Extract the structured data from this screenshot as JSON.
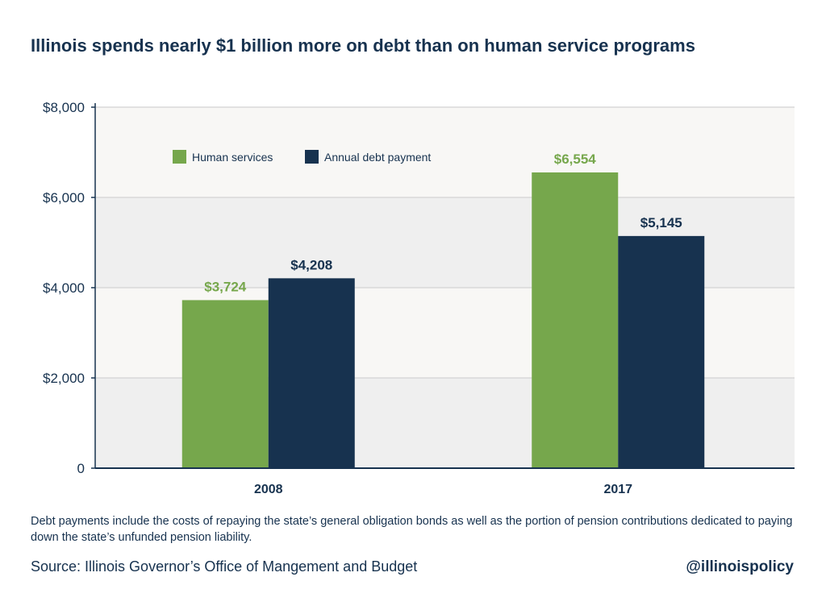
{
  "title": "Illinois spends nearly $1 billion more on debt than on human service programs",
  "footnote": "Debt payments include the costs of repaying the state’s general obligation bonds as well as the portion of pension contributions dedicated to paying down the state’s unfunded pension liability.",
  "source": "Source: Illinois Governor’s Office of Mangement and Budget",
  "handle": "@illinoispolicy",
  "colors": {
    "human_services": "#76a74c",
    "debt": "#17324f",
    "band_light": "#f8f7f5",
    "band_dark": "#efefef",
    "axis": "#17324f"
  },
  "chart_data": {
    "type": "bar",
    "categories": [
      "2008",
      "2017"
    ],
    "series": [
      {
        "name": "Human services",
        "values": [
          3724,
          6554
        ],
        "labels": [
          "$3,724",
          "$6,554"
        ]
      },
      {
        "name": "Annual debt payment",
        "values": [
          4208,
          5145
        ],
        "labels": [
          "$4,208",
          "$5,145"
        ]
      }
    ],
    "ylim": [
      0,
      8000
    ],
    "yticks": [
      0,
      2000,
      4000,
      6000,
      8000
    ],
    "ytick_labels": [
      "0",
      "$2,000",
      "$4,000",
      "$6,000",
      "$8,000"
    ],
    "legend_position": "top-left",
    "grid": true
  }
}
